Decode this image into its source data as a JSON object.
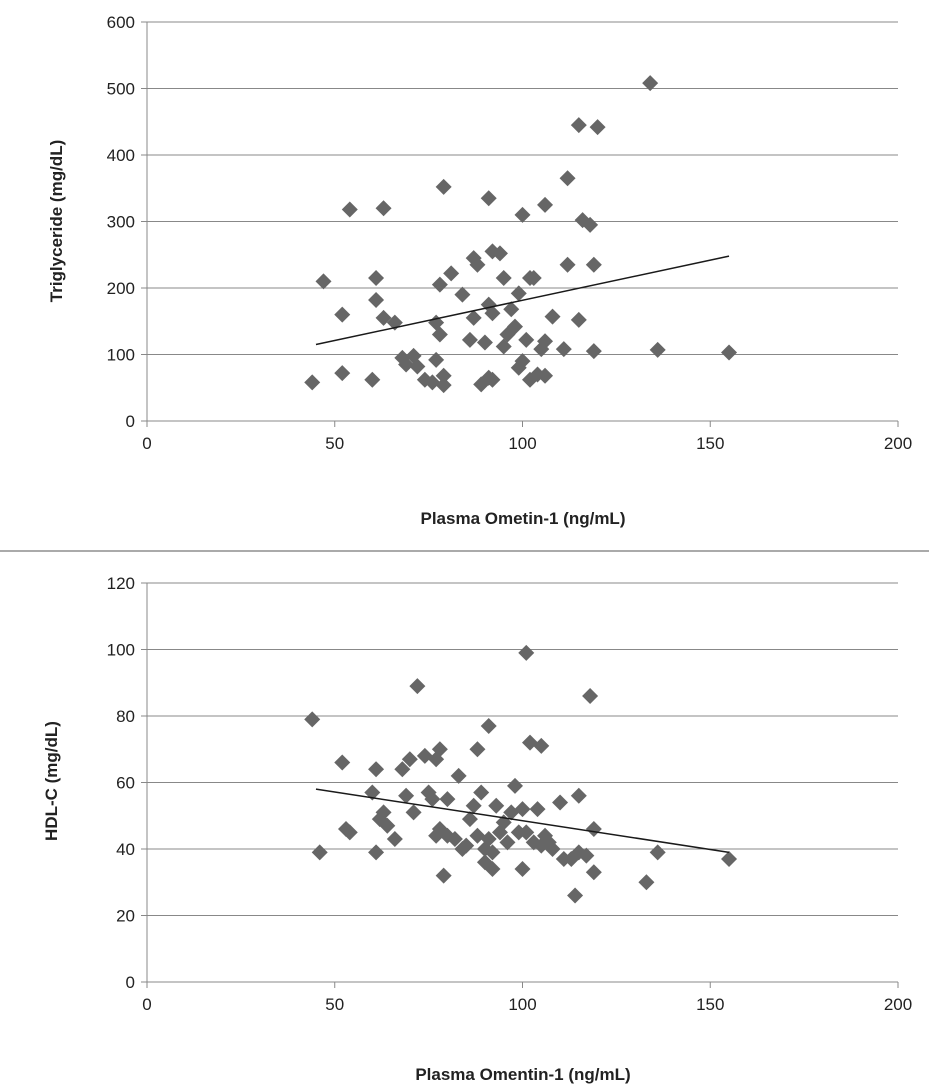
{
  "chart_data": [
    {
      "type": "scatter",
      "xlabel": "Plasma Ometin-1 (ng/mL)",
      "ylabel": "Triglyceride  (mg/dL)",
      "xlim": [
        0,
        200
      ],
      "ylim": [
        0,
        600
      ],
      "xticks": [
        "0",
        "50",
        "100",
        "150",
        "200"
      ],
      "yticks": [
        "0",
        "100",
        "200",
        "300",
        "400",
        "500",
        "600"
      ],
      "grid": "horizontal",
      "marker": "diamond",
      "colors": {
        "marker": "#666666",
        "trendline": "#1a1a1a",
        "grid": "#888888",
        "axis": "#888888"
      },
      "trendline": {
        "x": [
          45,
          155
        ],
        "y": [
          115,
          248
        ]
      },
      "points": [
        [
          44,
          58
        ],
        [
          47,
          210
        ],
        [
          52,
          160
        ],
        [
          52,
          72
        ],
        [
          54,
          318
        ],
        [
          60,
          62
        ],
        [
          61,
          182
        ],
        [
          61,
          215
        ],
        [
          63,
          320
        ],
        [
          63,
          155
        ],
        [
          66,
          148
        ],
        [
          68,
          95
        ],
        [
          69,
          85
        ],
        [
          71,
          98
        ],
        [
          72,
          82
        ],
        [
          74,
          62
        ],
        [
          76,
          58
        ],
        [
          77,
          148
        ],
        [
          77,
          92
        ],
        [
          78,
          130
        ],
        [
          78,
          205
        ],
        [
          79,
          54
        ],
        [
          79,
          352
        ],
        [
          79,
          68
        ],
        [
          81,
          222
        ],
        [
          84,
          190
        ],
        [
          86,
          122
        ],
        [
          87,
          245
        ],
        [
          87,
          155
        ],
        [
          88,
          235
        ],
        [
          89,
          55
        ],
        [
          90,
          118
        ],
        [
          91,
          65
        ],
        [
          91,
          335
        ],
        [
          91,
          175
        ],
        [
          92,
          162
        ],
        [
          92,
          62
        ],
        [
          92,
          255
        ],
        [
          94,
          252
        ],
        [
          95,
          215
        ],
        [
          95,
          112
        ],
        [
          96,
          130
        ],
        [
          97,
          168
        ],
        [
          98,
          142
        ],
        [
          99,
          80
        ],
        [
          99,
          192
        ],
        [
          100,
          310
        ],
        [
          100,
          90
        ],
        [
          101,
          122
        ],
        [
          102,
          62
        ],
        [
          102,
          215
        ],
        [
          103,
          215
        ],
        [
          104,
          70
        ],
        [
          105,
          108
        ],
        [
          106,
          68
        ],
        [
          106,
          325
        ],
        [
          106,
          120
        ],
        [
          108,
          157
        ],
        [
          111,
          108
        ],
        [
          112,
          235
        ],
        [
          112,
          365
        ],
        [
          115,
          152
        ],
        [
          115,
          445
        ],
        [
          116,
          302
        ],
        [
          118,
          295
        ],
        [
          119,
          105
        ],
        [
          119,
          235
        ],
        [
          120,
          442
        ],
        [
          134,
          508
        ],
        [
          136,
          107
        ],
        [
          155,
          103
        ]
      ]
    },
    {
      "type": "scatter",
      "xlabel": "Plasma Omentin-1 (ng/mL)",
      "ylabel": "HDL-C (mg/dL)",
      "xlim": [
        0,
        200
      ],
      "ylim": [
        0,
        120
      ],
      "xticks": [
        "0",
        "50",
        "100",
        "150",
        "200"
      ],
      "yticks": [
        "0",
        "20",
        "40",
        "60",
        "80",
        "100",
        "120"
      ],
      "grid": "horizontal",
      "marker": "diamond",
      "colors": {
        "marker": "#666666",
        "trendline": "#1a1a1a",
        "grid": "#888888",
        "axis": "#888888"
      },
      "trendline": {
        "x": [
          45,
          155
        ],
        "y": [
          58,
          39
        ]
      },
      "points": [
        [
          44,
          79
        ],
        [
          46,
          39
        ],
        [
          52,
          66
        ],
        [
          53,
          46
        ],
        [
          54,
          45
        ],
        [
          60,
          57
        ],
        [
          61,
          64
        ],
        [
          61,
          39
        ],
        [
          62,
          49
        ],
        [
          63,
          51
        ],
        [
          64,
          47
        ],
        [
          66,
          43
        ],
        [
          68,
          64
        ],
        [
          69,
          56
        ],
        [
          70,
          67
        ],
        [
          71,
          51
        ],
        [
          72,
          89
        ],
        [
          74,
          68
        ],
        [
          75,
          57
        ],
        [
          76,
          55
        ],
        [
          77,
          44
        ],
        [
          77,
          67
        ],
        [
          78,
          70
        ],
        [
          78,
          46
        ],
        [
          79,
          32
        ],
        [
          80,
          55
        ],
        [
          80,
          44
        ],
        [
          82,
          43
        ],
        [
          83,
          62
        ],
        [
          84,
          40
        ],
        [
          85,
          41
        ],
        [
          86,
          49
        ],
        [
          87,
          53
        ],
        [
          88,
          70
        ],
        [
          88,
          44
        ],
        [
          89,
          57
        ],
        [
          90,
          36
        ],
        [
          90,
          40
        ],
        [
          91,
          43
        ],
        [
          91,
          77
        ],
        [
          92,
          39
        ],
        [
          92,
          34
        ],
        [
          93,
          53
        ],
        [
          94,
          45
        ],
        [
          95,
          48
        ],
        [
          96,
          42
        ],
        [
          97,
          51
        ],
        [
          98,
          59
        ],
        [
          99,
          45
        ],
        [
          100,
          34
        ],
        [
          100,
          52
        ],
        [
          101,
          99
        ],
        [
          101,
          45
        ],
        [
          102,
          72
        ],
        [
          103,
          42
        ],
        [
          104,
          52
        ],
        [
          105,
          41
        ],
        [
          105,
          71
        ],
        [
          106,
          44
        ],
        [
          107,
          42
        ],
        [
          108,
          40
        ],
        [
          110,
          54
        ],
        [
          111,
          37
        ],
        [
          113,
          37
        ],
        [
          114,
          26
        ],
        [
          115,
          56
        ],
        [
          115,
          39
        ],
        [
          117,
          38
        ],
        [
          118,
          86
        ],
        [
          119,
          46
        ],
        [
          119,
          33
        ],
        [
          133,
          30
        ],
        [
          136,
          39
        ],
        [
          155,
          37
        ]
      ]
    }
  ]
}
